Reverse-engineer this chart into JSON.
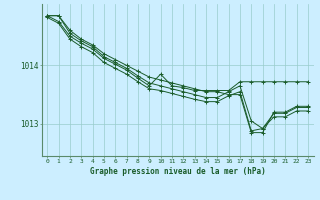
{
  "title": "Graphe pression niveau de la mer (hPa)",
  "background_color": "#cceeff",
  "plot_bg_color": "#cceeff",
  "grid_color": "#99cccc",
  "line_color": "#1a5c2a",
  "marker_color": "#1a5c2a",
  "xlim": [
    -0.5,
    23.5
  ],
  "ylim": [
    1012.45,
    1015.05
  ],
  "yticks": [
    1013,
    1014
  ],
  "xticks": [
    0,
    1,
    2,
    3,
    4,
    5,
    6,
    7,
    8,
    9,
    10,
    11,
    12,
    13,
    14,
    15,
    16,
    17,
    18,
    19,
    20,
    21,
    22,
    23
  ],
  "series": [
    [
      1014.85,
      1014.85,
      1014.6,
      1014.45,
      1014.35,
      1014.2,
      1014.1,
      1014.0,
      1013.9,
      1013.8,
      1013.75,
      1013.7,
      1013.65,
      1013.6,
      1013.55,
      1013.55,
      1013.5,
      1013.5,
      1012.85,
      1012.85,
      1013.2,
      1013.2,
      1013.3,
      1013.3
    ],
    [
      1014.85,
      1014.85,
      1014.55,
      1014.42,
      1014.32,
      1014.15,
      1014.05,
      1013.95,
      1013.82,
      1013.7,
      1013.65,
      1013.6,
      1013.55,
      1013.5,
      1013.45,
      1013.45,
      1013.55,
      1013.65,
      1013.05,
      1012.92,
      1013.18,
      1013.18,
      1013.28,
      1013.28
    ],
    [
      1014.85,
      1014.75,
      1014.5,
      1014.38,
      1014.28,
      1014.12,
      1014.02,
      1013.92,
      1013.78,
      1013.65,
      1013.85,
      1013.65,
      1013.62,
      1013.57,
      1013.57,
      1013.57,
      1013.57,
      1013.72,
      1013.72,
      1013.72,
      1013.72,
      1013.72,
      1013.72,
      1013.72
    ],
    [
      1014.82,
      1014.72,
      1014.45,
      1014.32,
      1014.22,
      1014.05,
      1013.95,
      1013.85,
      1013.72,
      1013.6,
      1013.57,
      1013.52,
      1013.47,
      1013.42,
      1013.38,
      1013.38,
      1013.48,
      1013.55,
      1012.88,
      1012.92,
      1013.12,
      1013.12,
      1013.22,
      1013.22
    ]
  ],
  "figwidth": 3.2,
  "figheight": 2.0,
  "dpi": 100
}
